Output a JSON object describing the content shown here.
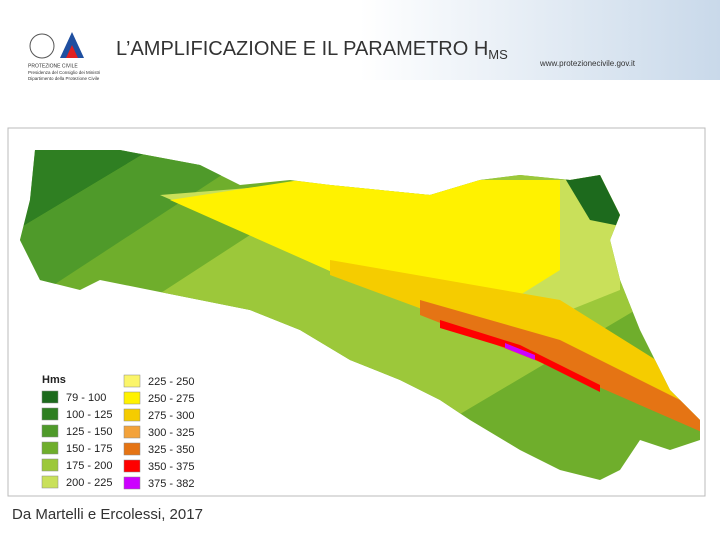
{
  "header": {
    "title": "L’AMPLIFICAZIONE E IL PARAMETRO H",
    "title_subscript": "MS",
    "website": "www.protezionecivile.gov.it",
    "logo_lines": [
      "PROTEZIONE CIVILE",
      "Presidenza del Consiglio dei Ministri",
      "Dipartimento della Protezione Civile"
    ]
  },
  "legend": {
    "title": "Hms",
    "items": [
      {
        "label": "79 - 100",
        "color": "#1d6a1d"
      },
      {
        "label": "100 - 125",
        "color": "#2f7f22"
      },
      {
        "label": "125 - 150",
        "color": "#4f9a2a"
      },
      {
        "label": "150 - 175",
        "color": "#6fae2c"
      },
      {
        "label": "175 - 200",
        "color": "#9cc83a"
      },
      {
        "label": "200 - 225",
        "color": "#c9e05a"
      },
      {
        "label": "225 - 250",
        "color": "#fbf56a"
      },
      {
        "label": "250 - 275",
        "color": "#fff200"
      },
      {
        "label": "275 - 300",
        "color": "#f5cc00"
      },
      {
        "label": "300 - 325",
        "color": "#f3a23a"
      },
      {
        "label": "325 - 350",
        "color": "#e57414"
      },
      {
        "label": "350 - 375",
        "color": "#ff0000"
      },
      {
        "label": "375 - 382",
        "color": "#cc00ff"
      }
    ]
  },
  "caption": "Da Martelli e Ercolessi, 2017"
}
